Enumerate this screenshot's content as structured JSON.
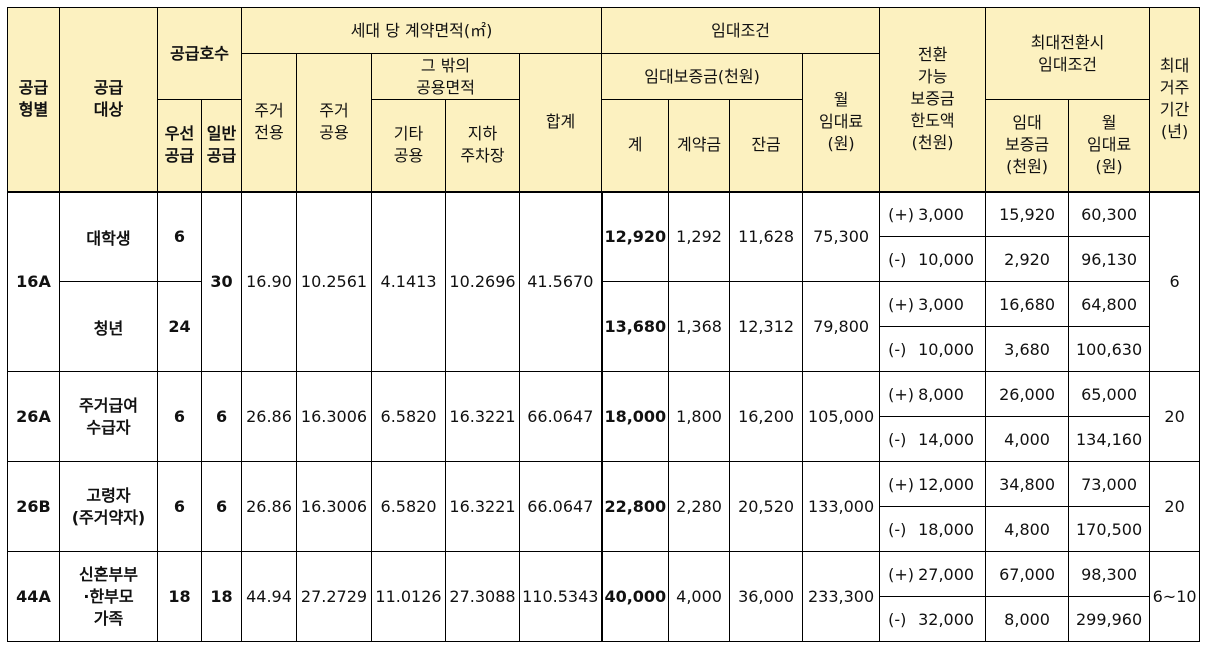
{
  "header": {
    "type": "공급\n형별",
    "target": "공급\n대상",
    "supply_count": "공급호수",
    "priority": "우선\n공급",
    "general": "일반\n공급",
    "area_group": "세대 당 계약면적(㎡)",
    "excl": "주거\n전용",
    "common": "주거\n공용",
    "other_common": "그 밖의\n공용면적",
    "etc_common": "기타\n공용",
    "parking": "지하\n주차장",
    "total_area": "합계",
    "lease_cond": "임대조건",
    "deposit_group": "임대보증금(천원)",
    "dep_total": "계",
    "dep_contract": "계약금",
    "dep_balance": "잔금",
    "monthly": "월\n임대료\n(원)",
    "conv_limit": "전환\n가능\n보증금\n한도액\n(천원)",
    "max_conv": "최대전환시\n임대조건",
    "max_dep": "임대\n보증금\n(천원)",
    "max_monthly": "월\n임대료\n(원)",
    "max_period": "최대\n거주\n기간\n(년)"
  },
  "rows": [
    {
      "type": "16A",
      "period": "6",
      "general": "30",
      "excl": "16.90",
      "common": "10.2561",
      "etc": "4.1413",
      "parking": "10.2696",
      "total": "41.5670",
      "subs": [
        {
          "target": "대학생",
          "priority": "6",
          "dep_total": "12,920",
          "dep_contract": "1,292",
          "dep_balance": "11,628",
          "monthly": "75,300",
          "conv": [
            {
              "sign": "(+)",
              "limit": "3,000",
              "dep": "15,920",
              "rent": "60,300"
            },
            {
              "sign": "(-)",
              "limit": "10,000",
              "dep": "2,920",
              "rent": "96,130"
            }
          ]
        },
        {
          "target": "청년",
          "priority": "24",
          "dep_total": "13,680",
          "dep_contract": "1,368",
          "dep_balance": "12,312",
          "monthly": "79,800",
          "conv": [
            {
              "sign": "(+)",
              "limit": "3,000",
              "dep": "16,680",
              "rent": "64,800"
            },
            {
              "sign": "(-)",
              "limit": "10,000",
              "dep": "3,680",
              "rent": "100,630"
            }
          ]
        }
      ]
    },
    {
      "type": "26A",
      "target": "주거급여\n수급자",
      "priority": "6",
      "general": "6",
      "excl": "26.86",
      "common": "16.3006",
      "etc": "6.5820",
      "parking": "16.3221",
      "total": "66.0647",
      "dep_total": "18,000",
      "dep_contract": "1,800",
      "dep_balance": "16,200",
      "monthly": "105,000",
      "period": "20",
      "conv": [
        {
          "sign": "(+)",
          "limit": "8,000",
          "dep": "26,000",
          "rent": "65,000"
        },
        {
          "sign": "(-)",
          "limit": "14,000",
          "dep": "4,000",
          "rent": "134,160"
        }
      ]
    },
    {
      "type": "26B",
      "target": "고령자\n(주거약자)",
      "priority": "6",
      "general": "6",
      "excl": "26.86",
      "common": "16.3006",
      "etc": "6.5820",
      "parking": "16.3221",
      "total": "66.0647",
      "dep_total": "22,800",
      "dep_contract": "2,280",
      "dep_balance": "20,520",
      "monthly": "133,000",
      "period": "20",
      "conv": [
        {
          "sign": "(+)",
          "limit": "12,000",
          "dep": "34,800",
          "rent": "73,000"
        },
        {
          "sign": "(-)",
          "limit": "18,000",
          "dep": "4,800",
          "rent": "170,500"
        }
      ]
    },
    {
      "type": "44A",
      "target": "신혼부부\n·한부모\n가족",
      "priority": "18",
      "general": "18",
      "excl": "44.94",
      "common": "27.2729",
      "etc": "11.0126",
      "parking": "27.3088",
      "total": "110.5343",
      "dep_total": "40,000",
      "dep_contract": "4,000",
      "dep_balance": "36,000",
      "monthly": "233,300",
      "period": "6~10",
      "conv": [
        {
          "sign": "(+)",
          "limit": "27,000",
          "dep": "67,000",
          "rent": "98,300"
        },
        {
          "sign": "(-)",
          "limit": "32,000",
          "dep": "8,000",
          "rent": "299,960"
        }
      ]
    }
  ]
}
